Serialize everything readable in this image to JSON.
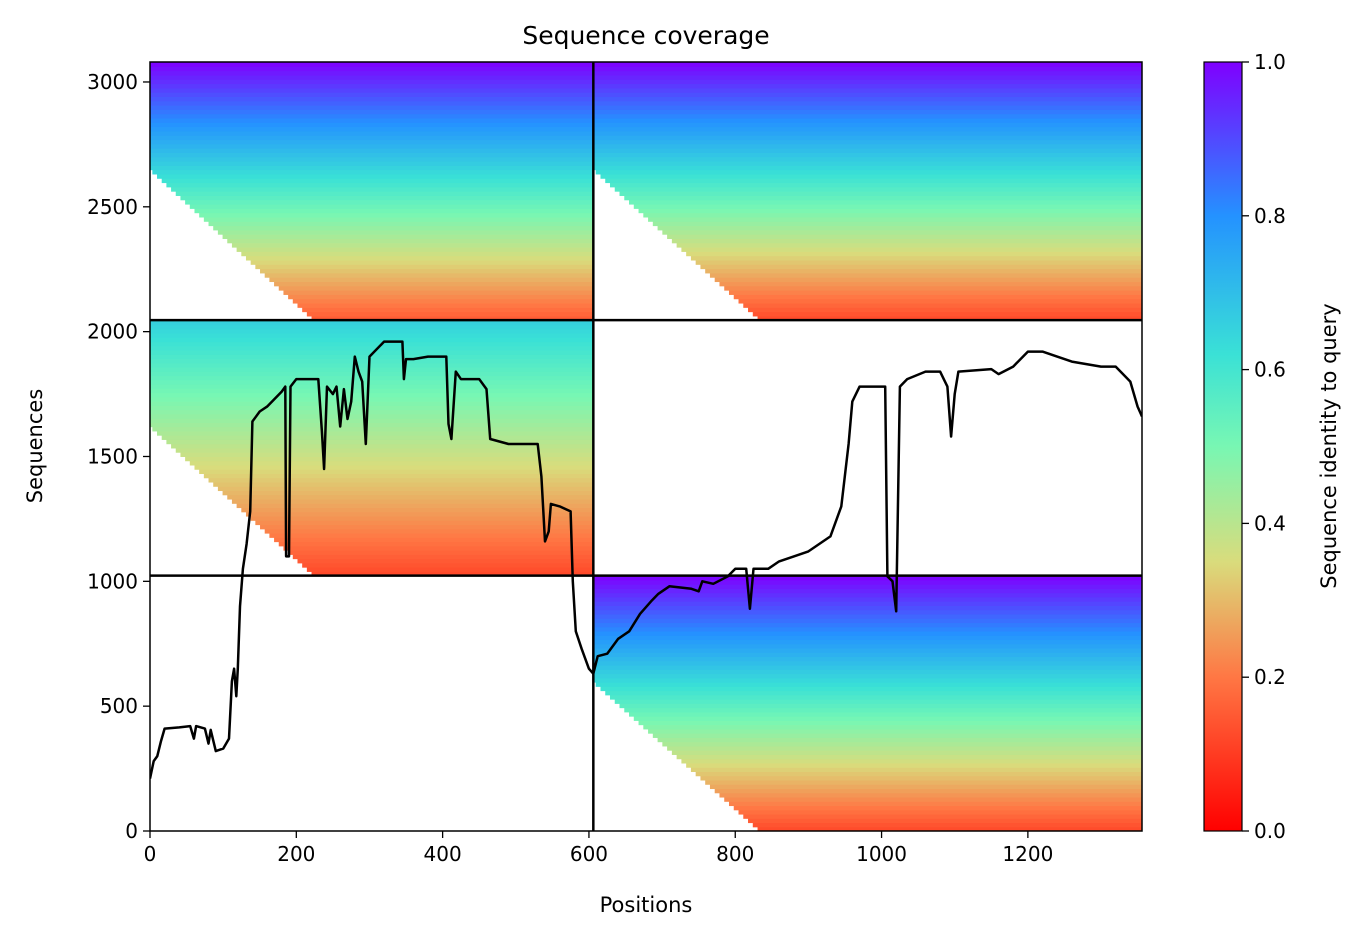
{
  "chart_data": {
    "type": "heatmap",
    "title": "Sequence coverage",
    "xlabel": "Positions",
    "ylabel": "Sequences",
    "xlim": [
      0,
      1356
    ],
    "ylim": [
      0,
      3080
    ],
    "x_ticks": [
      0,
      200,
      400,
      600,
      800,
      1000,
      1200
    ],
    "y_ticks": [
      0,
      500,
      1000,
      1500,
      2000,
      2500,
      3000
    ],
    "grid": false,
    "colormap": "rainbow_r",
    "colorbar": {
      "label": "Sequence identity to query",
      "range": [
        0.0,
        1.0
      ],
      "ticks": [
        0.0,
        0.2,
        0.4,
        0.6,
        0.8,
        1.0
      ],
      "colors": {
        "0.0": "#ff0000",
        "0.2": "#ff7744",
        "0.35": "#d9dc7c",
        "0.5": "#78f7b3",
        "0.6": "#3ae1d6",
        "0.8": "#2492ff",
        "1.0": "#7f00ff"
      }
    },
    "blocks": [
      {
        "name": "block-upper-left",
        "x_range": [
          0,
          606
        ],
        "y_range": [
          2046,
          3080
        ]
      },
      {
        "name": "block-upper-right",
        "x_range": [
          606,
          1356
        ],
        "y_range": [
          2046,
          3080
        ]
      },
      {
        "name": "block-middle-left",
        "x_range": [
          0,
          606
        ],
        "y_range": [
          1023,
          2046
        ]
      },
      {
        "name": "block-lower-right",
        "x_range": [
          606,
          1356
        ],
        "y_range": [
          0,
          1023
        ]
      }
    ],
    "dividers": {
      "vertical_x": 606,
      "horizontal_y": [
        1023,
        2046
      ]
    },
    "coverage_line": {
      "color": "#000000",
      "points": [
        [
          0,
          210
        ],
        [
          5,
          280
        ],
        [
          10,
          300
        ],
        [
          15,
          360
        ],
        [
          20,
          410
        ],
        [
          40,
          415
        ],
        [
          55,
          420
        ],
        [
          60,
          370
        ],
        [
          63,
          420
        ],
        [
          75,
          410
        ],
        [
          80,
          350
        ],
        [
          83,
          405
        ],
        [
          90,
          320
        ],
        [
          100,
          330
        ],
        [
          108,
          370
        ],
        [
          112,
          600
        ],
        [
          115,
          650
        ],
        [
          118,
          540
        ],
        [
          120,
          650
        ],
        [
          123,
          900
        ],
        [
          127,
          1050
        ],
        [
          132,
          1150
        ],
        [
          137,
          1280
        ],
        [
          140,
          1640
        ],
        [
          150,
          1680
        ],
        [
          160,
          1700
        ],
        [
          170,
          1730
        ],
        [
          180,
          1760
        ],
        [
          185,
          1780
        ],
        [
          186,
          1100
        ],
        [
          190,
          1100
        ],
        [
          192,
          1780
        ],
        [
          200,
          1810
        ],
        [
          230,
          1810
        ],
        [
          235,
          1600
        ],
        [
          238,
          1450
        ],
        [
          242,
          1780
        ],
        [
          250,
          1750
        ],
        [
          255,
          1780
        ],
        [
          260,
          1620
        ],
        [
          265,
          1770
        ],
        [
          270,
          1650
        ],
        [
          275,
          1720
        ],
        [
          280,
          1900
        ],
        [
          285,
          1840
        ],
        [
          290,
          1800
        ],
        [
          295,
          1550
        ],
        [
          300,
          1900
        ],
        [
          320,
          1960
        ],
        [
          345,
          1960
        ],
        [
          347,
          1810
        ],
        [
          350,
          1890
        ],
        [
          360,
          1890
        ],
        [
          380,
          1900
        ],
        [
          405,
          1900
        ],
        [
          408,
          1630
        ],
        [
          412,
          1570
        ],
        [
          418,
          1840
        ],
        [
          425,
          1810
        ],
        [
          450,
          1810
        ],
        [
          460,
          1770
        ],
        [
          465,
          1570
        ],
        [
          490,
          1550
        ],
        [
          530,
          1550
        ],
        [
          535,
          1420
        ],
        [
          540,
          1160
        ],
        [
          545,
          1200
        ],
        [
          548,
          1310
        ],
        [
          560,
          1300
        ],
        [
          575,
          1280
        ],
        [
          578,
          1000
        ],
        [
          582,
          800
        ],
        [
          590,
          730
        ],
        [
          600,
          650
        ],
        [
          606,
          630
        ],
        [
          612,
          700
        ],
        [
          625,
          710
        ],
        [
          640,
          770
        ],
        [
          655,
          800
        ],
        [
          670,
          870
        ],
        [
          685,
          920
        ],
        [
          695,
          950
        ],
        [
          710,
          980
        ],
        [
          740,
          970
        ],
        [
          750,
          960
        ],
        [
          755,
          1000
        ],
        [
          770,
          990
        ],
        [
          790,
          1020
        ],
        [
          800,
          1050
        ],
        [
          815,
          1050
        ],
        [
          820,
          890
        ],
        [
          825,
          1050
        ],
        [
          845,
          1050
        ],
        [
          860,
          1080
        ],
        [
          880,
          1100
        ],
        [
          900,
          1120
        ],
        [
          930,
          1180
        ],
        [
          945,
          1300
        ],
        [
          955,
          1550
        ],
        [
          960,
          1720
        ],
        [
          970,
          1780
        ],
        [
          1005,
          1780
        ],
        [
          1008,
          1020
        ],
        [
          1015,
          1000
        ],
        [
          1020,
          880
        ],
        [
          1025,
          1780
        ],
        [
          1035,
          1810
        ],
        [
          1060,
          1840
        ],
        [
          1080,
          1840
        ],
        [
          1090,
          1780
        ],
        [
          1095,
          1580
        ],
        [
          1100,
          1750
        ],
        [
          1105,
          1840
        ],
        [
          1150,
          1850
        ],
        [
          1160,
          1830
        ],
        [
          1180,
          1860
        ],
        [
          1200,
          1920
        ],
        [
          1220,
          1920
        ],
        [
          1240,
          1900
        ],
        [
          1260,
          1880
        ],
        [
          1280,
          1870
        ],
        [
          1300,
          1860
        ],
        [
          1320,
          1860
        ],
        [
          1340,
          1800
        ],
        [
          1350,
          1700
        ],
        [
          1356,
          1660
        ]
      ]
    }
  }
}
